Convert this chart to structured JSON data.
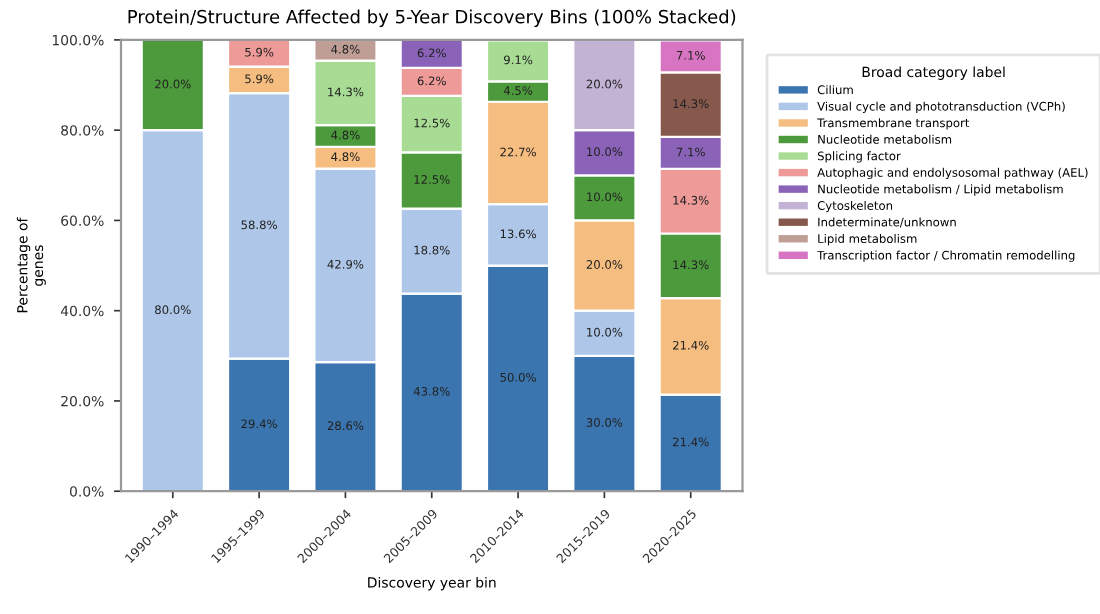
{
  "chart_data": {
    "type": "bar",
    "stacked": true,
    "title": "Protein/Structure Affected by 5-Year Discovery Bins (100% Stacked)",
    "xlabel": "Discovery year bin",
    "ylabel": "Percentage of\ngenes",
    "legend_title": "Broad category label",
    "legend": "top right",
    "grid": false,
    "categories": [
      "1990–1994",
      "1995–1999",
      "2000–2004",
      "2005–2009",
      "2010–2014",
      "2015–2019",
      "2020–2025"
    ],
    "ylim": [
      0,
      100
    ],
    "yticks": [
      {
        "value": 0,
        "label": "0.0%"
      },
      {
        "value": 20,
        "label": "20.0%"
      },
      {
        "value": 40,
        "label": "40.0%"
      },
      {
        "value": 60,
        "label": "60.0%"
      },
      {
        "value": 80,
        "label": "80.0%"
      },
      {
        "value": 100,
        "label": "100.0%"
      }
    ],
    "series": [
      {
        "name": "Cilium",
        "color": "#3b75af",
        "values": [
          0,
          29.4,
          28.6,
          43.8,
          50.0,
          30.0,
          21.4
        ],
        "value_labels": [
          null,
          "29.4%",
          "28.6%",
          "43.8%",
          "50.0%",
          "30.0%",
          "21.4%"
        ]
      },
      {
        "name": "Visual cycle and phototransduction (VCPh)",
        "color": "#aec7e8",
        "values": [
          80.0,
          58.8,
          42.9,
          18.8,
          13.6,
          10.0,
          0
        ],
        "value_labels": [
          "80.0%",
          "58.8%",
          "42.9%",
          "18.8%",
          "13.6%",
          "10.0%",
          null
        ]
      },
      {
        "name": "Transmembrane transport",
        "color": "#f5bd7f",
        "values": [
          0,
          5.9,
          4.8,
          0,
          22.7,
          20.0,
          21.4
        ],
        "value_labels": [
          null,
          "5.9%",
          "4.8%",
          null,
          "22.7%",
          "20.0%",
          "21.4%"
        ]
      },
      {
        "name": "Nucleotide metabolism",
        "color": "#4c9a3c",
        "values": [
          20.0,
          0,
          4.8,
          12.5,
          4.5,
          10.0,
          14.3
        ],
        "value_labels": [
          "20.0%",
          null,
          "4.8%",
          "12.5%",
          "4.5%",
          "10.0%",
          "14.3%"
        ]
      },
      {
        "name": "Splicing factor",
        "color": "#a8dc94",
        "values": [
          0,
          0,
          14.3,
          12.5,
          9.1,
          0,
          0
        ],
        "value_labels": [
          null,
          null,
          "14.3%",
          "12.5%",
          "9.1%",
          null,
          null
        ]
      },
      {
        "name": "Autophagic and endolysosomal pathway (AEL)",
        "color": "#ee9a98",
        "values": [
          0,
          5.9,
          0,
          6.2,
          0,
          0,
          14.3
        ],
        "value_labels": [
          null,
          "5.9%",
          null,
          "6.2%",
          null,
          null,
          "14.3%"
        ]
      },
      {
        "name": "Nucleotide metabolism / Lipid metabolism",
        "color": "#8a63b8",
        "values": [
          0,
          0,
          0,
          6.2,
          0,
          10.0,
          7.1
        ],
        "value_labels": [
          null,
          null,
          null,
          "6.2%",
          null,
          "10.0%",
          "7.1%"
        ]
      },
      {
        "name": "Cytoskeleton",
        "color": "#c2b2d4",
        "values": [
          0,
          0,
          0,
          0,
          0,
          20.0,
          0
        ],
        "value_labels": [
          null,
          null,
          null,
          null,
          null,
          "20.0%",
          null
        ]
      },
      {
        "name": "Indeterminate/unknown",
        "color": "#86594c",
        "values": [
          0,
          0,
          0,
          0,
          0,
          0,
          14.3
        ],
        "value_labels": [
          null,
          null,
          null,
          null,
          null,
          null,
          "14.3%"
        ]
      },
      {
        "name": "Lipid metabolism",
        "color": "#bf9e96",
        "values": [
          0,
          0,
          4.8,
          0,
          0,
          0,
          0
        ],
        "value_labels": [
          null,
          null,
          "4.8%",
          null,
          null,
          null,
          null
        ]
      },
      {
        "name": "Transcription factor / Chromatin remodelling",
        "color": "#d775c2",
        "values": [
          0,
          0,
          0,
          0,
          0,
          0,
          7.1
        ],
        "value_labels": [
          null,
          null,
          null,
          null,
          null,
          null,
          "7.1%"
        ]
      }
    ]
  }
}
